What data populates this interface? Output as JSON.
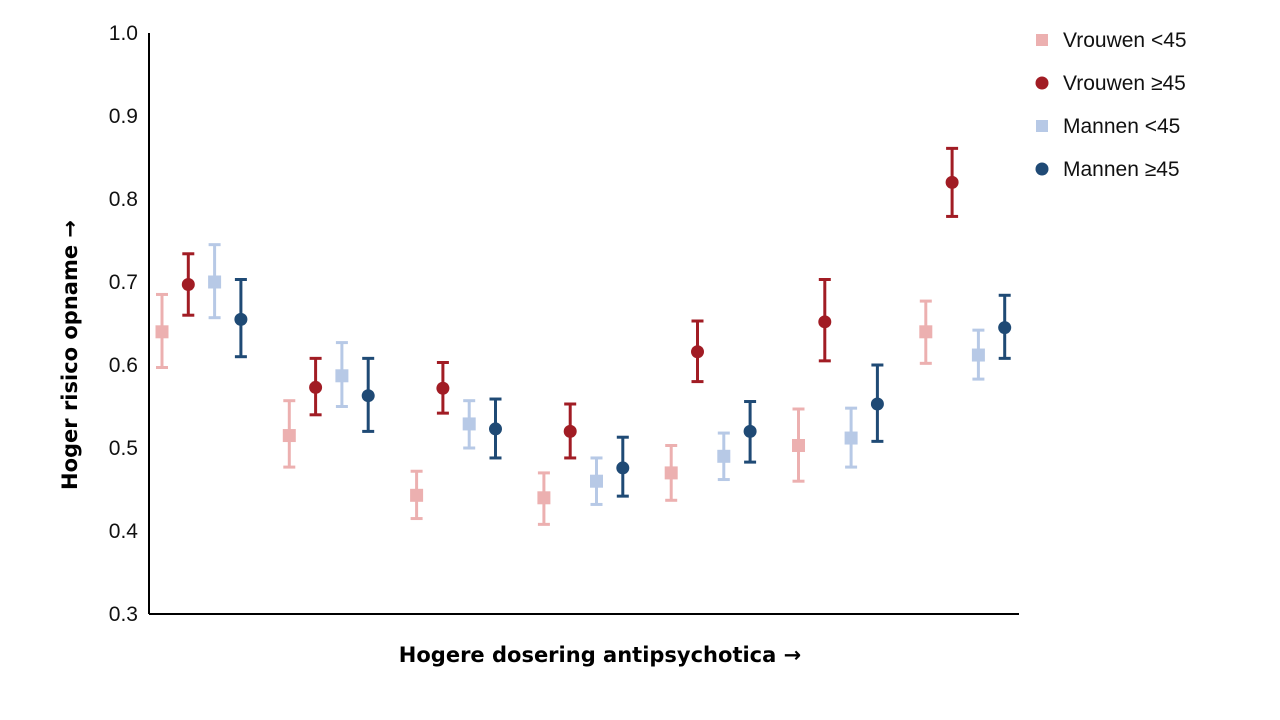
{
  "chart_data": {
    "type": "scatter",
    "xlabel": "Hogere dosering antipsychotica →",
    "ylabel": "Hoger risico opname →",
    "ylim": [
      0.3,
      1.0
    ],
    "yticks": [
      "0.3",
      "0.4",
      "0.5",
      "0.6",
      "0.7",
      "0.8",
      "0.9",
      "1.0"
    ],
    "x": [
      1,
      2,
      3,
      4,
      5,
      6,
      7
    ],
    "grid": false,
    "legend_position": "top-right",
    "series": [
      {
        "name": "Vrouwen <45",
        "marker": "square",
        "color": "#ecb0b0",
        "values": [
          0.64,
          0.515,
          0.443,
          0.44,
          0.47,
          0.503,
          0.64
        ],
        "lower": [
          0.597,
          0.477,
          0.415,
          0.408,
          0.437,
          0.46,
          0.602
        ],
        "upper": [
          0.685,
          0.557,
          0.472,
          0.47,
          0.503,
          0.547,
          0.677
        ]
      },
      {
        "name": "Vrouwen ≥45",
        "marker": "circle",
        "color": "#a11c24",
        "values": [
          0.697,
          0.573,
          0.572,
          0.52,
          0.616,
          0.652,
          0.82
        ],
        "lower": [
          0.66,
          0.54,
          0.542,
          0.488,
          0.58,
          0.605,
          0.779
        ],
        "upper": [
          0.734,
          0.608,
          0.603,
          0.553,
          0.653,
          0.703,
          0.861
        ]
      },
      {
        "name": "Mannen <45",
        "marker": "square",
        "color": "#b7c9e6",
        "values": [
          0.7,
          0.587,
          0.529,
          0.46,
          0.49,
          0.512,
          0.612
        ],
        "lower": [
          0.657,
          0.55,
          0.5,
          0.432,
          0.462,
          0.477,
          0.583
        ],
        "upper": [
          0.745,
          0.627,
          0.557,
          0.488,
          0.518,
          0.548,
          0.642
        ]
      },
      {
        "name": "Mannen ≥45",
        "marker": "circle",
        "color": "#1f4a75",
        "values": [
          0.655,
          0.563,
          0.523,
          0.476,
          0.52,
          0.553,
          0.645
        ],
        "lower": [
          0.61,
          0.52,
          0.488,
          0.442,
          0.483,
          0.508,
          0.608
        ],
        "upper": [
          0.703,
          0.608,
          0.559,
          0.513,
          0.556,
          0.6,
          0.684
        ]
      }
    ]
  }
}
